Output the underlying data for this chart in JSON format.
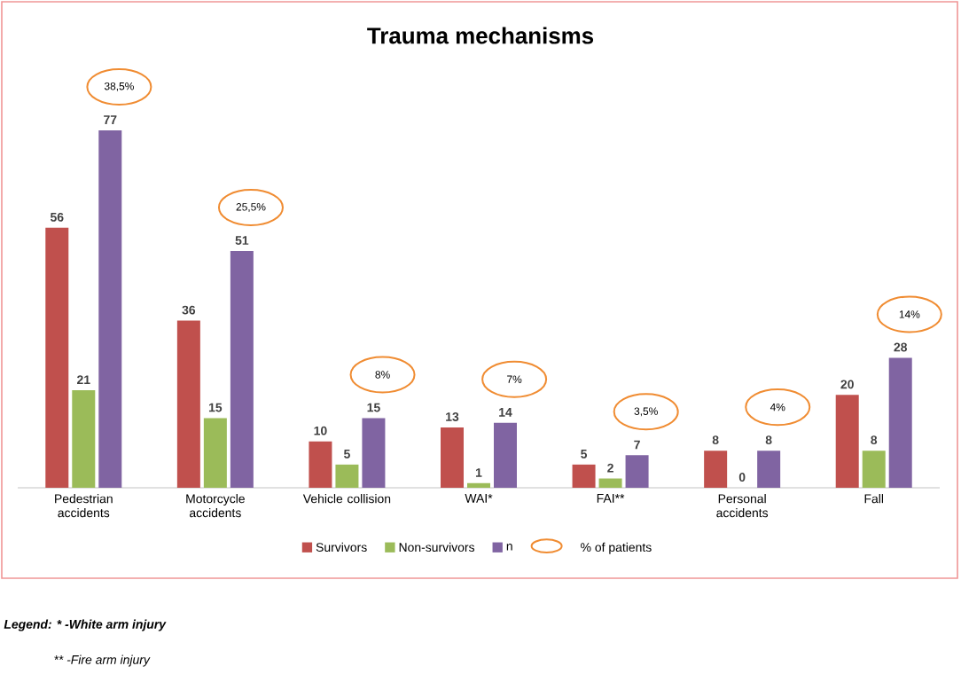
{
  "chart_data": {
    "type": "bar",
    "title": "Trauma mechanisms",
    "categories": [
      "Pedestrian accidents",
      "Motorcycle accidents",
      "Vehicle collision",
      "WAI*",
      "FAI**",
      "Personal accidents",
      "Fall"
    ],
    "series": [
      {
        "name": "Survivors",
        "color": "#c0504d",
        "values": [
          56,
          36,
          10,
          13,
          5,
          8,
          20
        ]
      },
      {
        "name": "Non-survivors",
        "color": "#9bbb59",
        "values": [
          21,
          15,
          5,
          1,
          2,
          0,
          8
        ]
      },
      {
        "name": "n",
        "color": "#8064a2",
        "values": [
          77,
          51,
          15,
          14,
          7,
          8,
          28
        ]
      }
    ],
    "data_labels": true,
    "legend": "bottom",
    "annotations": [
      "38,5%",
      "25,5%",
      "8%",
      "7%",
      "3,5%",
      "4%",
      "14%",
      "% of patients",
      "Legend: * -White arm injury",
      "** -Fire arm injury"
    ]
  }
}
